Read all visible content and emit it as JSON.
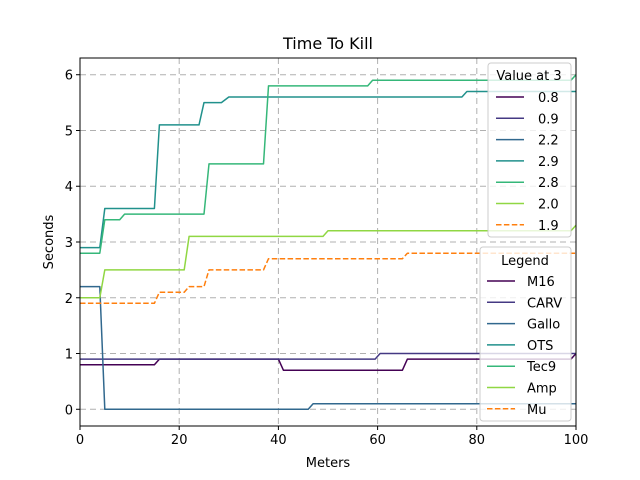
{
  "chart_data": {
    "type": "line",
    "title": "Time To Kill",
    "xlabel": "Meters",
    "ylabel": "Seconds",
    "xlim": [
      0,
      100
    ],
    "ylim": [
      -0.3,
      6.3
    ],
    "xticks": [
      0,
      20,
      40,
      60,
      80,
      100
    ],
    "yticks": [
      0,
      1,
      2,
      3,
      4,
      5,
      6
    ],
    "grid": true,
    "legend_value": {
      "title": "Value at 3",
      "placement": "top-right",
      "labels": [
        "0.8",
        "0.9",
        "2.2",
        "2.9",
        "2.8",
        "2.0",
        "1.9"
      ]
    },
    "legend_series": {
      "title": "Legend",
      "placement": "center-right",
      "labels": [
        "M16",
        "CARV",
        "Gallo",
        "OTS",
        "Tec9",
        "Amp",
        "Mu"
      ]
    },
    "series": [
      {
        "name": "M16",
        "color": "#440154",
        "dashed": false,
        "points": [
          [
            0,
            0.8
          ],
          [
            15,
            0.8
          ],
          [
            16,
            0.9
          ],
          [
            40,
            0.9
          ],
          [
            41,
            0.7
          ],
          [
            65,
            0.7
          ],
          [
            66,
            0.9
          ],
          [
            99,
            0.9
          ],
          [
            100,
            1.0
          ]
        ]
      },
      {
        "name": "CARV",
        "color": "#443983",
        "dashed": false,
        "points": [
          [
            0,
            0.9
          ],
          [
            59.5,
            0.9
          ],
          [
            60.5,
            1.0
          ],
          [
            100,
            1.0
          ]
        ]
      },
      {
        "name": "Gallo",
        "color": "#31688e",
        "dashed": false,
        "points": [
          [
            0,
            2.2
          ],
          [
            4,
            2.2
          ],
          [
            5,
            0
          ],
          [
            46,
            0
          ],
          [
            47,
            0.1
          ],
          [
            100,
            0.1
          ]
        ]
      },
      {
        "name": "OTS",
        "color": "#21918c",
        "dashed": false,
        "points": [
          [
            0,
            2.9
          ],
          [
            4,
            2.9
          ],
          [
            5,
            3.6
          ],
          [
            15,
            3.6
          ],
          [
            16,
            5.1
          ],
          [
            24,
            5.1
          ],
          [
            25,
            5.5
          ],
          [
            28.5,
            5.5
          ],
          [
            30,
            5.6
          ],
          [
            77,
            5.6
          ],
          [
            78,
            5.7
          ],
          [
            100,
            5.7
          ]
        ]
      },
      {
        "name": "Tec9",
        "color": "#35b779",
        "dashed": false,
        "points": [
          [
            0,
            2.8
          ],
          [
            4,
            2.8
          ],
          [
            5,
            3.4
          ],
          [
            8,
            3.4
          ],
          [
            9,
            3.5
          ],
          [
            25,
            3.5
          ],
          [
            26,
            4.4
          ],
          [
            37,
            4.4
          ],
          [
            38,
            5.8
          ],
          [
            58,
            5.8
          ],
          [
            59,
            5.9
          ],
          [
            99,
            5.9
          ],
          [
            100,
            6.0
          ]
        ]
      },
      {
        "name": "Amp",
        "color": "#90d743",
        "dashed": false,
        "points": [
          [
            0,
            2.0
          ],
          [
            4,
            2.0
          ],
          [
            5,
            2.5
          ],
          [
            21,
            2.5
          ],
          [
            22,
            3.1
          ],
          [
            49,
            3.1
          ],
          [
            50,
            3.2
          ],
          [
            99,
            3.2
          ],
          [
            100,
            3.3
          ]
        ]
      },
      {
        "name": "Mu",
        "color": "#ff7f0e",
        "dashed": true,
        "points": [
          [
            0,
            1.9
          ],
          [
            15,
            1.9
          ],
          [
            16,
            2.1
          ],
          [
            21,
            2.1
          ],
          [
            22,
            2.2
          ],
          [
            25,
            2.2
          ],
          [
            26,
            2.5
          ],
          [
            37,
            2.5
          ],
          [
            38,
            2.7
          ],
          [
            65,
            2.7
          ],
          [
            66,
            2.8
          ],
          [
            100,
            2.8
          ]
        ]
      }
    ]
  }
}
